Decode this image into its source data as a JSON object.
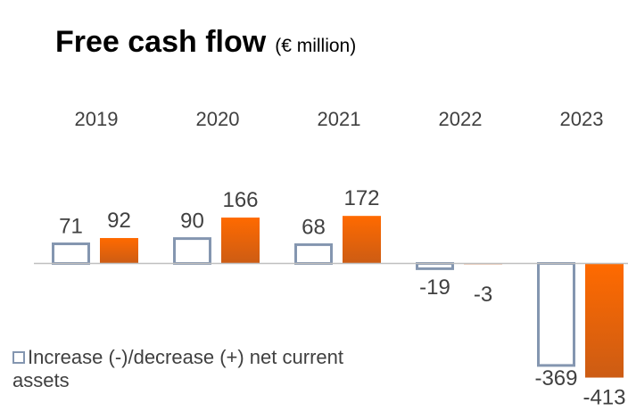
{
  "chart_data": {
    "type": "bar",
    "title": "Free cash flow",
    "subtitle": "(€ million)",
    "categories": [
      "2019",
      "2020",
      "2021",
      "2022",
      "2023"
    ],
    "series": [
      {
        "name": "Increase (-)/decrease (+) net current assets",
        "color": "#8496b0",
        "values": [
          71,
          90,
          68,
          -19,
          -369
        ]
      },
      {
        "color": "#ff6a00",
        "values": [
          92,
          166,
          172,
          -3,
          -413
        ]
      }
    ],
    "ylim": [
      -450,
      250
    ]
  }
}
